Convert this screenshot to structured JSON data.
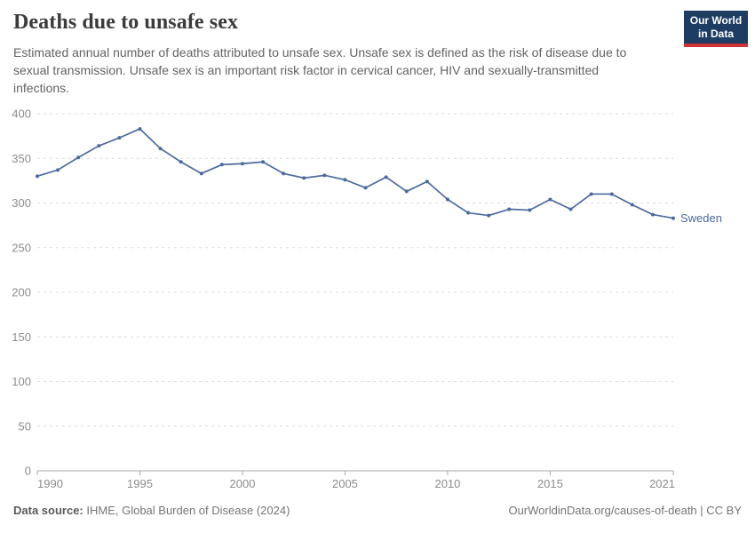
{
  "header": {
    "title": "Deaths due to unsafe sex",
    "subtitle": "Estimated annual number of deaths attributed to unsafe sex. Unsafe sex is defined as the risk of disease due to sexual transmission. Unsafe sex is an important risk factor in cervical cancer, HIV and sexually-transmitted infections.",
    "logo": {
      "line1": "Our World",
      "line2": "in Data"
    }
  },
  "chart_data": {
    "type": "line",
    "title": "Deaths due to unsafe sex",
    "x": [
      1990,
      1991,
      1992,
      1993,
      1994,
      1995,
      1996,
      1997,
      1998,
      1999,
      2000,
      2001,
      2002,
      2003,
      2004,
      2005,
      2006,
      2007,
      2008,
      2009,
      2010,
      2011,
      2012,
      2013,
      2014,
      2015,
      2016,
      2017,
      2018,
      2019,
      2020,
      2021
    ],
    "series": [
      {
        "name": "Sweden",
        "color": "#4c6a9e",
        "values": [
          330,
          337,
          351,
          364,
          373,
          383,
          361,
          346,
          333,
          343,
          344,
          346,
          333,
          328,
          331,
          326,
          317,
          329,
          313,
          324,
          304,
          289,
          286,
          293,
          292,
          304,
          293,
          310,
          310,
          298,
          287,
          283
        ]
      }
    ],
    "xlabel": "",
    "ylabel": "",
    "ylim": [
      0,
      400
    ],
    "yticks": [
      0,
      50,
      100,
      150,
      200,
      250,
      300,
      350,
      400
    ],
    "xticks": [
      1990,
      1995,
      2000,
      2005,
      2010,
      2015,
      2021
    ],
    "grid": "horizontal-dashed",
    "legend": "line-end-label"
  },
  "footer": {
    "source_label": "Data source:",
    "source_text": " IHME, Global Burden of Disease (2024)",
    "credit": "OurWorldinData.org/causes-of-death | CC BY"
  },
  "colors": {
    "line": "#4c6a9e",
    "grid": "#dcdcdc",
    "axis": "#a8a8a8",
    "tick_label": "#8c8c8c",
    "logo_bg": "#1d3d63",
    "logo_accent": "#d13239"
  }
}
